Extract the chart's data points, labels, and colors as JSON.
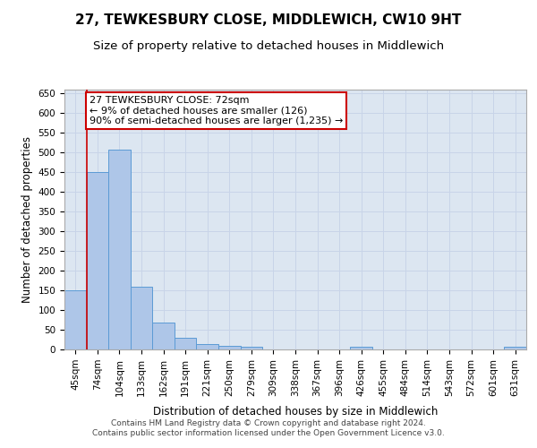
{
  "title": "27, TEWKESBURY CLOSE, MIDDLEWICH, CW10 9HT",
  "subtitle": "Size of property relative to detached houses in Middlewich",
  "xlabel": "Distribution of detached houses by size in Middlewich",
  "ylabel": "Number of detached properties",
  "footer_line1": "Contains HM Land Registry data © Crown copyright and database right 2024.",
  "footer_line2": "Contains public sector information licensed under the Open Government Licence v3.0.",
  "categories": [
    "45sqm",
    "74sqm",
    "104sqm",
    "133sqm",
    "162sqm",
    "191sqm",
    "221sqm",
    "250sqm",
    "279sqm",
    "309sqm",
    "338sqm",
    "367sqm",
    "396sqm",
    "426sqm",
    "455sqm",
    "484sqm",
    "514sqm",
    "543sqm",
    "572sqm",
    "601sqm",
    "631sqm"
  ],
  "values": [
    150,
    450,
    507,
    160,
    68,
    30,
    14,
    10,
    6,
    0,
    0,
    0,
    0,
    7,
    0,
    0,
    0,
    0,
    0,
    0,
    7
  ],
  "bar_color": "#aec6e8",
  "bar_edge_color": "#5b9bd5",
  "background_color": "#dce6f1",
  "annotation_line1": "27 TEWKESBURY CLOSE: 72sqm",
  "annotation_line2": "← 9% of detached houses are smaller (126)",
  "annotation_line3": "90% of semi-detached houses are larger (1,235) →",
  "annotation_box_color": "#ffffff",
  "annotation_box_edge_color": "#cc0000",
  "vline_color": "#cc0000",
  "ylim": [
    0,
    660
  ],
  "yticks": [
    0,
    50,
    100,
    150,
    200,
    250,
    300,
    350,
    400,
    450,
    500,
    550,
    600,
    650
  ],
  "title_fontsize": 11,
  "subtitle_fontsize": 9.5,
  "axis_label_fontsize": 8.5,
  "tick_fontsize": 7.5,
  "annotation_fontsize": 8,
  "footer_fontsize": 6.5,
  "grid_color": "#c8d4e8"
}
